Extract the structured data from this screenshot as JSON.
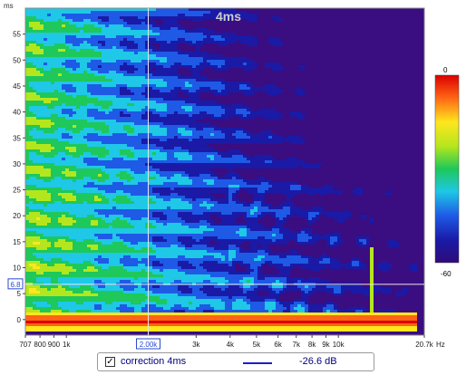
{
  "chart_data": {
    "type": "heatmap",
    "title": "4ms",
    "ylabel": "ms",
    "xlabel_unit": "Hz",
    "x_scale": "log",
    "x_range": [
      707,
      20700
    ],
    "y_range": [
      -3,
      60
    ],
    "y_ticks": [
      "0",
      "5",
      "10",
      "15",
      "20",
      "25",
      "30",
      "35",
      "40",
      "45",
      "50",
      "55"
    ],
    "y_tick_values": [
      0,
      5,
      10,
      15,
      20,
      25,
      30,
      35,
      40,
      45,
      50,
      55
    ],
    "x_ticks": [
      "707",
      "800",
      "900",
      "1k",
      "3k",
      "4k",
      "5k",
      "6k",
      "7k",
      "8k",
      "9k",
      "10k",
      "20.7k"
    ],
    "x_tick_values": [
      707,
      800,
      900,
      1000,
      3000,
      4000,
      5000,
      6000,
      7000,
      8000,
      9000,
      10000,
      20700
    ],
    "cursor": {
      "x_label": "2.00k",
      "x_value": 2000,
      "y_label": "6.8",
      "y_value": 6.8
    },
    "colorbar": {
      "max_label": "0",
      "min_label": "-60",
      "range": [
        -60,
        0
      ]
    },
    "grid": false,
    "legend_position": "bottom"
  },
  "colors": {
    "background": "#3a0d80",
    "colormap": [
      "#2e0b7a",
      "#1a1aa6",
      "#1e5ae6",
      "#1ec8e6",
      "#1ec85a",
      "#b4e61e",
      "#ffe61e",
      "#ff6414",
      "#dc0000"
    ]
  },
  "legend": {
    "checked": true,
    "series_name": "correction 4ms",
    "value": "-26.6 dB",
    "line_color": "#1e1ecc"
  }
}
